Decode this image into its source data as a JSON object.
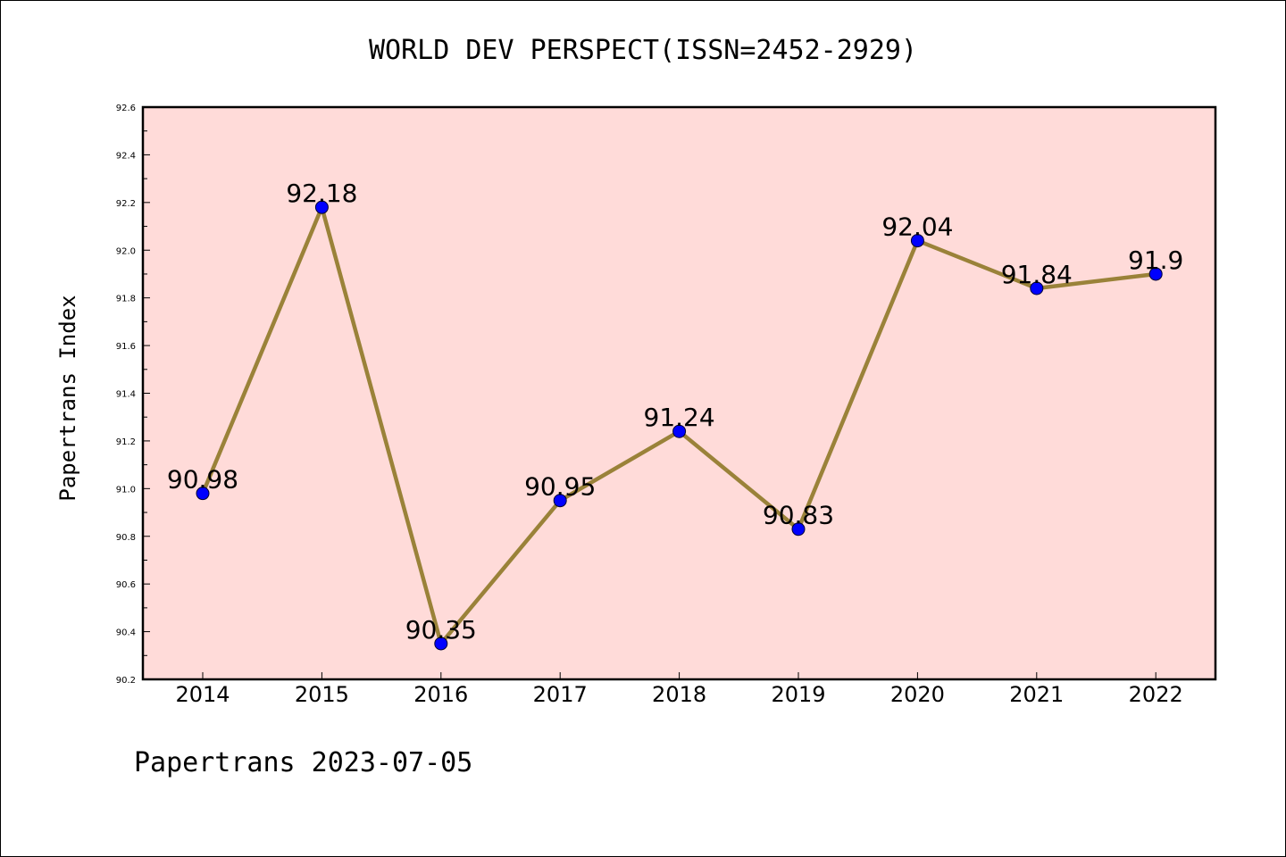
{
  "chart_data": {
    "type": "line",
    "title": "WORLD DEV PERSPECT(ISSN=2452-2929)",
    "ylabel": "Papertrans Index",
    "footer": "Papertrans 2023-07-05",
    "categories": [
      "2014",
      "2015",
      "2016",
      "2017",
      "2018",
      "2019",
      "2020",
      "2021",
      "2022"
    ],
    "values": [
      90.98,
      92.18,
      90.35,
      90.95,
      91.24,
      90.83,
      92.04,
      91.84,
      91.9
    ],
    "data_labels": [
      "90.98",
      "92.18",
      "90.35",
      "90.95",
      "91.24",
      "90.83",
      "92.04",
      "91.84",
      "91.9"
    ],
    "ylim": [
      90.2,
      92.6
    ],
    "yticks": [
      "90.2",
      "90.4",
      "90.6",
      "90.8",
      "91.0",
      "91.2",
      "91.4",
      "91.6",
      "91.8",
      "92.0",
      "92.2",
      "92.4",
      "92.6"
    ],
    "grid": false,
    "colors": {
      "plot_background": "#ffdbd9",
      "line": "#9a8239",
      "marker": "#0000ff",
      "marker_edge": "#000033"
    }
  }
}
